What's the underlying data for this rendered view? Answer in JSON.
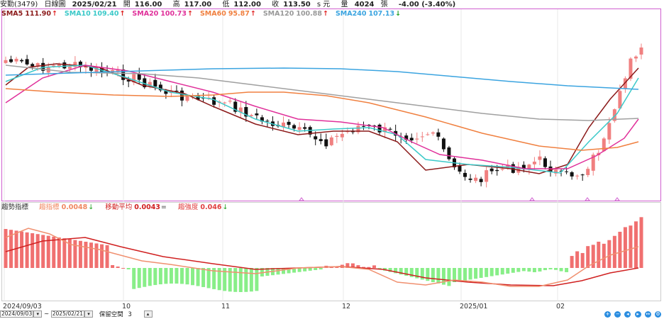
{
  "header": {
    "symbol": "安勤(3479)",
    "period": "日線圖",
    "date": "2025/02/21",
    "open_label": "開",
    "open": "116.00",
    "high_label": "高",
    "high": "117.00",
    "low_label": "低",
    "low": "112.00",
    "close_label": "收",
    "close": "113.50",
    "close_suffix": "s 元",
    "volume_label": "量",
    "volume": "4024",
    "volume_unit": "張",
    "change": "-4.00 (-3.40%)"
  },
  "ma_legend": [
    {
      "label": "SMA5",
      "value": "111.90",
      "arrow": "↑",
      "color": "#8b1a1a"
    },
    {
      "label": "SMA10",
      "value": "109.40",
      "arrow": "↑",
      "color": "#3cc9c9"
    },
    {
      "label": "SMA20",
      "value": "100.73",
      "arrow": "↑",
      "color": "#e0309a"
    },
    {
      "label": "SMA60",
      "value": "95.87",
      "arrow": "↑",
      "color": "#f08040"
    },
    {
      "label": "SMA120",
      "value": "100.88",
      "arrow": "↑",
      "color": "#999999"
    },
    {
      "label": "SMA240",
      "value": "107.13",
      "arrow": "↓",
      "color": "#3ba4e0"
    }
  ],
  "osc_legend": {
    "title": "趨勢指標",
    "items": [
      {
        "label": "趨指標",
        "value": "0.0048",
        "arrow": "↓",
        "color": "#f08860"
      },
      {
        "label": "移動平均",
        "value": "0.0043",
        "arrow": "=",
        "color": "#d02020"
      },
      {
        "label": "趨強度",
        "value": "0.046",
        "arrow": "↓",
        "color": "#e04040"
      }
    ]
  },
  "xaxis": [
    "2024/09/03",
    "10",
    "11",
    "12",
    "2025/01",
    "02"
  ],
  "toolbar": {
    "range_start": "2024/09/03",
    "range_sep": "~",
    "range_end": "2025/02/21",
    "keep_label": "保留空間",
    "keep_value": "3"
  },
  "colors": {
    "up": "#f08080",
    "down": "#111111",
    "osc_pos": "#f07070",
    "osc_neg": "#88ee88",
    "panel_border": "#d060d0"
  }
}
